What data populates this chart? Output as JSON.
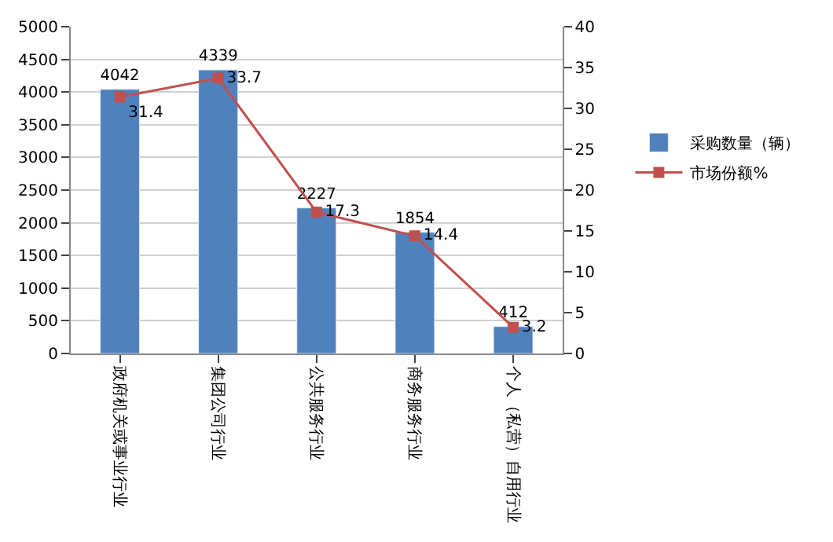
{
  "chart_data": {
    "type": "bar",
    "categories": [
      "政府机关或事业行业",
      "集团公司行业",
      "公共服务行业",
      "商务服务行业",
      "个人（私营）自用行业"
    ],
    "series": [
      {
        "name": "采购数量（辆）",
        "color": "#4f81bd",
        "values": [
          4042,
          4339,
          2227,
          1854,
          412
        ]
      },
      {
        "name": "市场份额%",
        "type": "line",
        "axis": "y2",
        "color": "#c0504d",
        "marker": "square",
        "values": [
          31.4,
          33.7,
          17.3,
          14.4,
          3.2
        ]
      }
    ],
    "data_labels": true,
    "ylim": [
      0,
      5000
    ],
    "yticks": [
      0,
      500,
      1000,
      1500,
      2000,
      2500,
      3000,
      3500,
      4000,
      4500,
      5000
    ],
    "y2lim": [
      0,
      40
    ],
    "y2ticks": [
      0,
      5,
      10,
      15,
      20,
      25,
      30,
      35,
      40
    ],
    "grid": "y",
    "legend": "right"
  }
}
